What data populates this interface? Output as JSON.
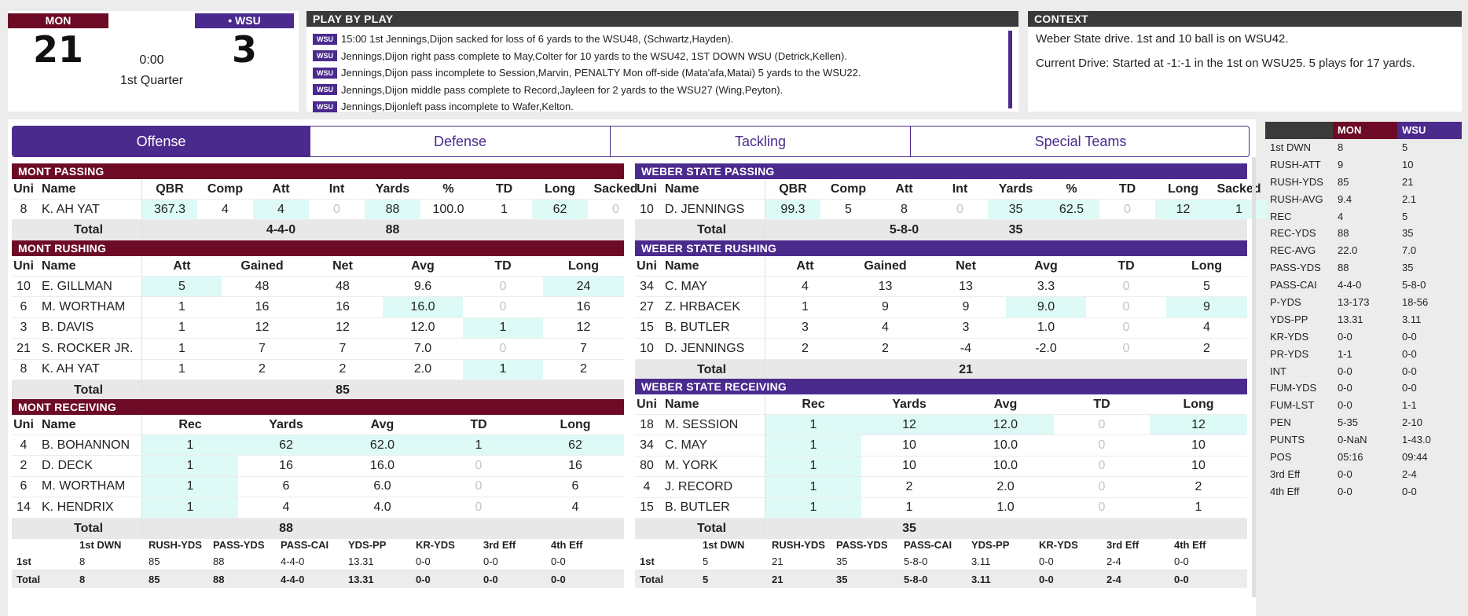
{
  "score": {
    "home_abbr": "MON",
    "away_abbr": "• WSU",
    "home_score": "21",
    "away_score": "3",
    "clock": "0:00",
    "quarter": "1st Quarter"
  },
  "pbp": {
    "title": "PLAY BY PLAY",
    "tag": "WSU",
    "items": [
      "15:00 1st Jennings,Dijon sacked for loss of 6 yards to the WSU48, (Schwartz,Hayden).",
      "Jennings,Dijon right pass complete to May,Colter for 10 yards to the WSU42, 1ST DOWN WSU (Detrick,Kellen).",
      "Jennings,Dijon pass incomplete to Session,Marvin, PENALTY Mon off-side (Mata'afa,Matai) 5 yards to the WSU22.",
      "Jennings,Dijon middle pass complete to Record,Jayleen for 2 yards to the WSU27 (Wing,Peyton).",
      "Jennings,Dijonleft pass incomplete to Wafer,Kelton."
    ]
  },
  "context": {
    "title": "CONTEXT",
    "line1": "Weber State drive. 1st and 10 ball is on WSU42.",
    "line2": "Current Drive: Started at -1:-1 in the 1st on WSU25. 5 plays for 17 yards."
  },
  "tabs": [
    "Offense",
    "Defense",
    "Tackling",
    "Special Teams"
  ],
  "mon_passing": {
    "title": "MONT PASSING",
    "headers": [
      "Uni",
      "Name",
      "QBR",
      "Comp",
      "Att",
      "Int",
      "Yards",
      "%",
      "TD",
      "Long",
      "Sacked"
    ],
    "rows": [
      [
        "8",
        "K. AH YAT",
        "367.3",
        "4",
        "4",
        "0",
        "88",
        "100.0",
        "1",
        "62",
        "0"
      ]
    ],
    "total_label": "Total",
    "total": [
      "4-4-0",
      "88"
    ]
  },
  "mon_rushing": {
    "title": "MONT RUSHING",
    "headers": [
      "Uni",
      "Name",
      "Att",
      "Gained",
      "Net",
      "Avg",
      "TD",
      "Long"
    ],
    "rows": [
      [
        "10",
        "E. GILLMAN",
        "5",
        "48",
        "48",
        "9.6",
        "0",
        "24"
      ],
      [
        "6",
        "M. WORTHAM",
        "1",
        "16",
        "16",
        "16.0",
        "0",
        "16"
      ],
      [
        "3",
        "B. DAVIS",
        "1",
        "12",
        "12",
        "12.0",
        "1",
        "12"
      ],
      [
        "21",
        "S. ROCKER JR.",
        "1",
        "7",
        "7",
        "7.0",
        "0",
        "7"
      ],
      [
        "8",
        "K. AH YAT",
        "1",
        "2",
        "2",
        "2.0",
        "1",
        "2"
      ]
    ],
    "total_label": "Total",
    "total": "85"
  },
  "mon_receiving": {
    "title": "MONT RECEIVING",
    "headers": [
      "Uni",
      "Name",
      "Rec",
      "Yards",
      "Avg",
      "TD",
      "Long"
    ],
    "rows": [
      [
        "4",
        "B. BOHANNON",
        "1",
        "62",
        "62.0",
        "1",
        "62"
      ],
      [
        "2",
        "D. DECK",
        "1",
        "16",
        "16.0",
        "0",
        "16"
      ],
      [
        "6",
        "M. WORTHAM",
        "1",
        "6",
        "6.0",
        "0",
        "6"
      ],
      [
        "14",
        "K. HENDRIX",
        "1",
        "4",
        "4.0",
        "0",
        "4"
      ]
    ],
    "total_label": "Total",
    "total": "88"
  },
  "wsu_passing": {
    "title": "WEBER STATE PASSING",
    "headers": [
      "Uni",
      "Name",
      "QBR",
      "Comp",
      "Att",
      "Int",
      "Yards",
      "%",
      "TD",
      "Long",
      "Sacked"
    ],
    "rows": [
      [
        "10",
        "D. JENNINGS",
        "99.3",
        "5",
        "8",
        "0",
        "35",
        "62.5",
        "0",
        "12",
        "1"
      ]
    ],
    "total_label": "Total",
    "total": [
      "5-8-0",
      "35"
    ]
  },
  "wsu_rushing": {
    "title": "WEBER STATE RUSHING",
    "headers": [
      "Uni",
      "Name",
      "Att",
      "Gained",
      "Net",
      "Avg",
      "TD",
      "Long"
    ],
    "rows": [
      [
        "34",
        "C. MAY",
        "4",
        "13",
        "13",
        "3.3",
        "0",
        "5"
      ],
      [
        "27",
        "Z. HRBACEK",
        "1",
        "9",
        "9",
        "9.0",
        "0",
        "9"
      ],
      [
        "15",
        "B. BUTLER",
        "3",
        "4",
        "3",
        "1.0",
        "0",
        "4"
      ],
      [
        "10",
        "D. JENNINGS",
        "2",
        "2",
        "-4",
        "-2.0",
        "0",
        "2"
      ]
    ],
    "total_label": "Total",
    "total": "21"
  },
  "wsu_receiving": {
    "title": "WEBER STATE RECEIVING",
    "headers": [
      "Uni",
      "Name",
      "Rec",
      "Yards",
      "Avg",
      "TD",
      "Long"
    ],
    "rows": [
      [
        "18",
        "M. SESSION",
        "1",
        "12",
        "12.0",
        "0",
        "12"
      ],
      [
        "34",
        "C. MAY",
        "1",
        "10",
        "10.0",
        "0",
        "10"
      ],
      [
        "80",
        "M. YORK",
        "1",
        "10",
        "10.0",
        "0",
        "10"
      ],
      [
        "4",
        "J. RECORD",
        "1",
        "2",
        "2.0",
        "0",
        "2"
      ],
      [
        "15",
        "B. BUTLER",
        "1",
        "1",
        "1.0",
        "0",
        "1"
      ]
    ],
    "total_label": "Total",
    "total": "35"
  },
  "mon_summary": {
    "headers": [
      "",
      "1st DWN",
      "RUSH-YDS",
      "PASS-YDS",
      "PASS-CAI",
      "YDS-PP",
      "KR-YDS",
      "3rd Eff",
      "4th Eff"
    ],
    "rows": [
      [
        "1st",
        "8",
        "85",
        "88",
        "4-4-0",
        "13.31",
        "0-0",
        "0-0",
        "0-0"
      ],
      [
        "Total",
        "8",
        "85",
        "88",
        "4-4-0",
        "13.31",
        "0-0",
        "0-0",
        "0-0"
      ]
    ]
  },
  "wsu_summary": {
    "headers": [
      "",
      "1st DWN",
      "RUSH-YDS",
      "PASS-YDS",
      "PASS-CAI",
      "YDS-PP",
      "KR-YDS",
      "3rd Eff",
      "4th Eff"
    ],
    "rows": [
      [
        "1st",
        "5",
        "21",
        "35",
        "5-8-0",
        "3.11",
        "0-0",
        "2-4",
        "0-0"
      ],
      [
        "Total",
        "5",
        "21",
        "35",
        "5-8-0",
        "3.11",
        "0-0",
        "2-4",
        "0-0"
      ]
    ]
  },
  "comparison": {
    "headers": [
      "",
      "MON",
      "WSU"
    ],
    "rows": [
      [
        "1st DWN",
        "8",
        "5"
      ],
      [
        "RUSH-ATT",
        "9",
        "10"
      ],
      [
        "RUSH-YDS",
        "85",
        "21"
      ],
      [
        "RUSH-AVG",
        "9.4",
        "2.1"
      ],
      [
        "REC",
        "4",
        "5"
      ],
      [
        "REC-YDS",
        "88",
        "35"
      ],
      [
        "REC-AVG",
        "22.0",
        "7.0"
      ],
      [
        "PASS-YDS",
        "88",
        "35"
      ],
      [
        "PASS-CAI",
        "4-4-0",
        "5-8-0"
      ],
      [
        "P-YDS",
        "13-173",
        "18-56"
      ],
      [
        "YDS-PP",
        "13.31",
        "3.11"
      ],
      [
        "KR-YDS",
        "0-0",
        "0-0"
      ],
      [
        "PR-YDS",
        "1-1",
        "0-0"
      ],
      [
        "INT",
        "0-0",
        "0-0"
      ],
      [
        "FUM-YDS",
        "0-0",
        "0-0"
      ],
      [
        "FUM-LST",
        "0-0",
        "1-1"
      ],
      [
        "PEN",
        "5-35",
        "2-10"
      ],
      [
        "PUNTS",
        "0-NaN",
        "1-43.0"
      ],
      [
        "POS",
        "05:16",
        "09:44"
      ],
      [
        "3rd Eff",
        "0-0",
        "2-4"
      ],
      [
        "4th Eff",
        "0-0",
        "0-0"
      ]
    ]
  },
  "colors": {
    "mon": "#6d0b27",
    "wsu": "#4b2a8e",
    "highlight": "#ddfaf6",
    "header_dark": "#3a3a3a"
  }
}
